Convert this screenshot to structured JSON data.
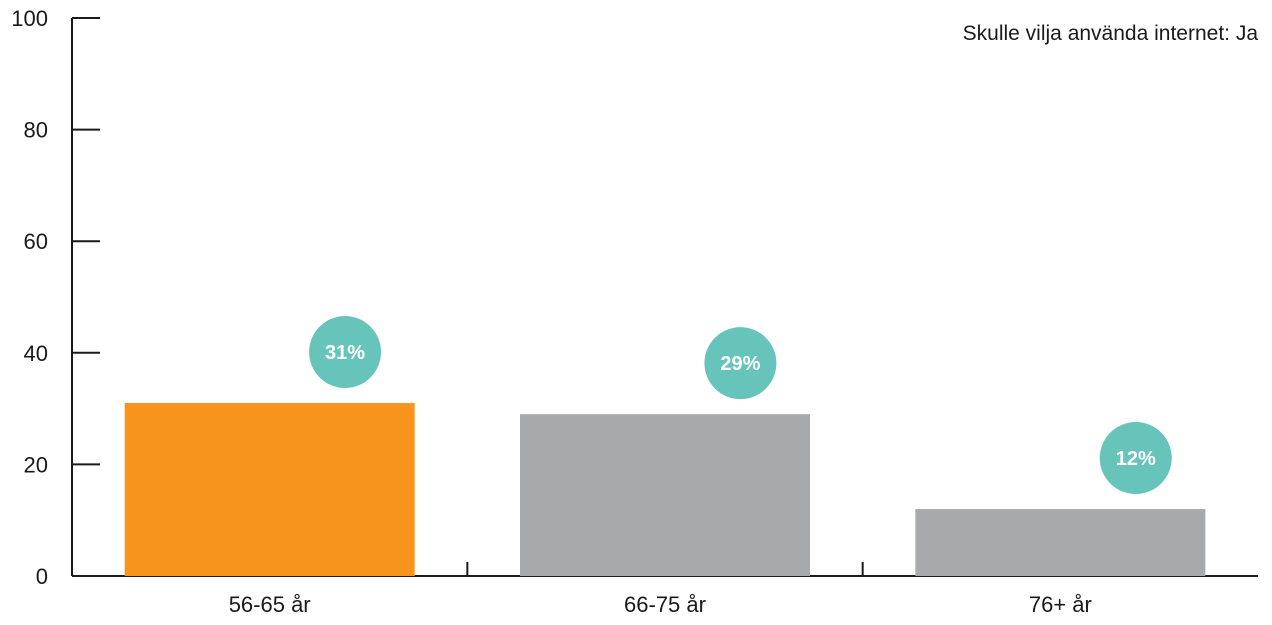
{
  "chart_data": {
    "type": "bar",
    "title": "",
    "legend": {
      "text": "Skulle vilja använda internet: Ja",
      "placement": "top-right"
    },
    "categories": [
      "56-65 år",
      "66-75 år",
      "76+ år"
    ],
    "series": [
      {
        "values": [
          31,
          29,
          12
        ],
        "labels": [
          "31%",
          "29%",
          "12%"
        ]
      }
    ],
    "bar_colors": [
      "#f7941d",
      "#a7a9ac",
      "#a7a9ac"
    ],
    "badge_color": "#67c4bb",
    "ylim": [
      0,
      100
    ],
    "yticks": [
      0,
      20,
      40,
      60,
      80,
      100
    ],
    "ytick_labels": [
      "0",
      "20",
      "40",
      "60",
      "80",
      "100"
    ],
    "xlabel": "",
    "ylabel": "",
    "grid": false
  }
}
